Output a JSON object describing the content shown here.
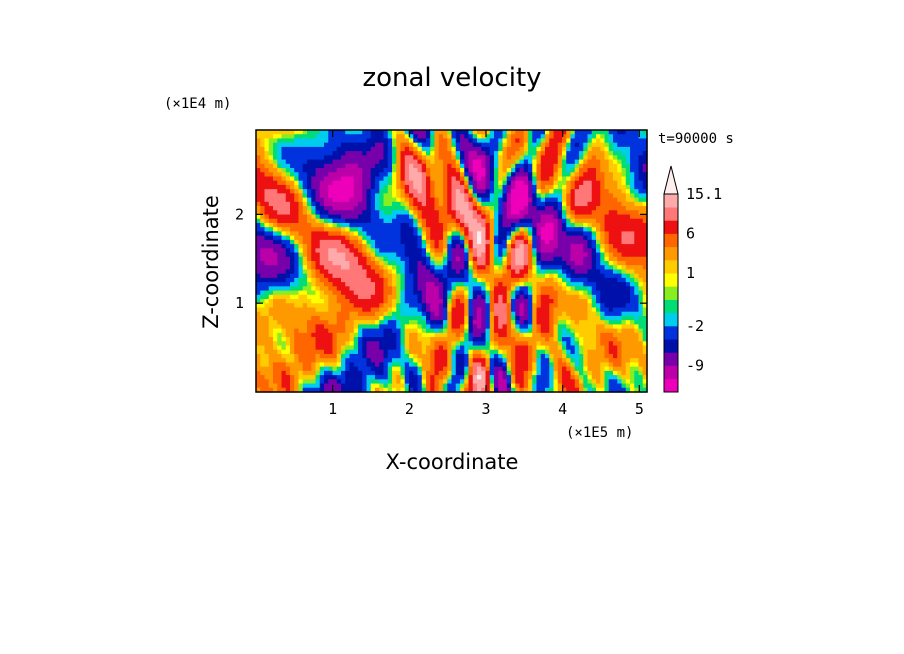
{
  "chart_data": {
    "type": "heatmap",
    "title": "zonal velocity",
    "xlabel": "X-coordinate",
    "ylabel": "Z-coordinate",
    "x_unit": "(×1E5 m)",
    "y_unit": "(×1E4 m)",
    "time_label": "t=90000 s",
    "xlim": [
      0.0,
      5.1
    ],
    "ylim": [
      0.0,
      2.95
    ],
    "x_ticks": [
      1,
      2,
      3,
      4,
      5
    ],
    "y_ticks": [
      1,
      2
    ],
    "colorbar": {
      "extend_max": true,
      "tick_labels": [
        {
          "level": 15.1,
          "label": "15.1"
        },
        {
          "level": 6,
          "label": "6"
        },
        {
          "level": 1,
          "label": "1"
        },
        {
          "level": -2,
          "label": "-2"
        },
        {
          "level": -9,
          "label": "-9"
        }
      ],
      "bands": [
        {
          "lo": -15,
          "hi": -12,
          "color": "#ee00bb"
        },
        {
          "lo": -12,
          "hi": -9,
          "color": "#bb00aa"
        },
        {
          "lo": -9,
          "hi": -6,
          "color": "#7700aa"
        },
        {
          "lo": -6,
          "hi": -4,
          "color": "#0011aa"
        },
        {
          "lo": -4,
          "hi": -2,
          "color": "#0033dd"
        },
        {
          "lo": -2,
          "hi": -1,
          "color": "#00ccee"
        },
        {
          "lo": -1,
          "hi": 0,
          "color": "#00dd77"
        },
        {
          "lo": 0,
          "hi": 0.5,
          "color": "#88ee22"
        },
        {
          "lo": 0.5,
          "hi": 1,
          "color": "#ffff00"
        },
        {
          "lo": 1,
          "hi": 2,
          "color": "#ffcc00"
        },
        {
          "lo": 2,
          "hi": 4,
          "color": "#ff9900"
        },
        {
          "lo": 4,
          "hi": 6,
          "color": "#ff6600"
        },
        {
          "lo": 6,
          "hi": 9,
          "color": "#ee1111"
        },
        {
          "lo": 9,
          "hi": 12,
          "color": "#ff7777"
        },
        {
          "lo": 12,
          "hi": 15.1,
          "color": "#ffaaaa"
        }
      ],
      "extend_color": "#ffeeee"
    }
  }
}
